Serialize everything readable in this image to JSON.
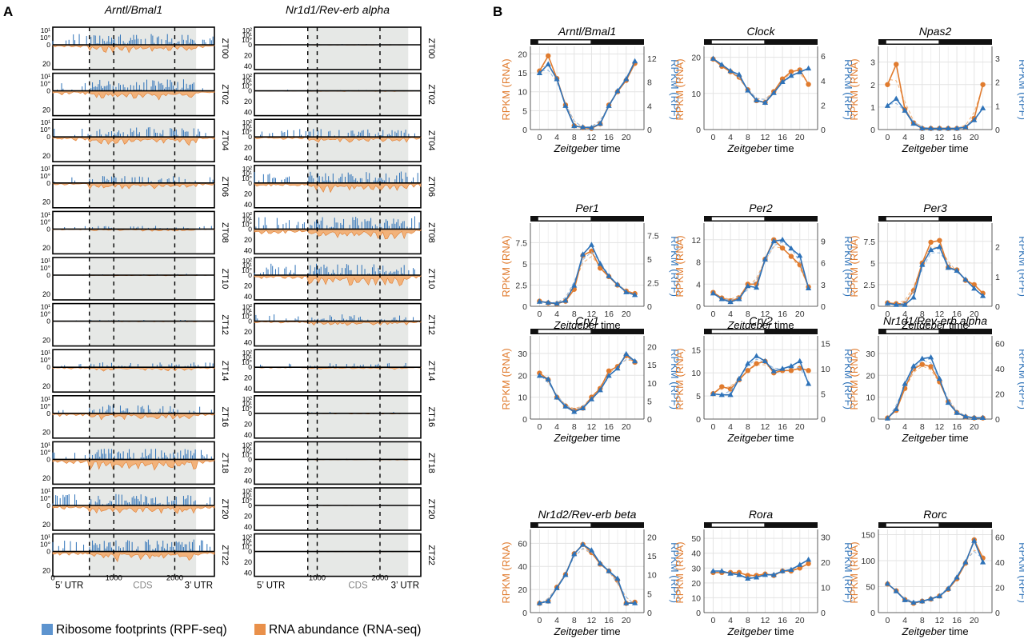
{
  "panel_a": {
    "label": "A",
    "genes": [
      {
        "title": "Arntl/Bmal1",
        "rpf_ticks": [
          "10¹",
          "10°",
          "0"
        ],
        "rna_ticks": [
          "20"
        ],
        "cds_start": 600,
        "cds_end": 2350,
        "xmax": 2650,
        "x_ticks": [
          0,
          1000,
          2000
        ],
        "seed": 7
      },
      {
        "title": "Nr1d1/Rev-erb alpha",
        "rpf_ticks": [
          "10²",
          "10¹",
          "10°",
          "0"
        ],
        "rna_ticks": [
          "20",
          "40"
        ],
        "cds_start": 850,
        "cds_end": 2450,
        "xmax": 2650,
        "x_ticks": [
          1000,
          2000
        ],
        "seed": 19
      }
    ],
    "timepoints": [
      "ZT00",
      "ZT02",
      "ZT04",
      "ZT06",
      "ZT08",
      "ZT10",
      "ZT12",
      "ZT14",
      "ZT16",
      "ZT18",
      "ZT20",
      "ZT22"
    ],
    "activity": {
      "Arntl/Bmal1": {
        "rpf": [
          0.75,
          0.8,
          0.7,
          0.5,
          0.25,
          0.1,
          0.1,
          0.35,
          0.6,
          0.75,
          0.8,
          0.85
        ],
        "rna": [
          0.5,
          0.6,
          0.55,
          0.4,
          0.15,
          0.05,
          0.05,
          0.25,
          0.45,
          0.7,
          0.6,
          0.65
        ]
      },
      "Nr1d1/Rev-erb alpha": {
        "rpf": [
          0.05,
          0.08,
          0.55,
          0.8,
          0.9,
          0.8,
          0.5,
          0.3,
          0.1,
          0.05,
          0.03,
          0.03
        ],
        "rna": [
          0.03,
          0.05,
          0.4,
          0.6,
          0.75,
          0.7,
          0.3,
          0.15,
          0.05,
          0.05,
          0.02,
          0.02
        ]
      }
    },
    "utr5": "5’ UTR",
    "cds": "CDS",
    "utr3": "3’ UTR",
    "legend_rpf": "Ribosome footprints (RPF-seq)",
    "legend_rna": "RNA abundance (RNA-seq)"
  },
  "panel_b": {
    "label": "B",
    "xlabel_italic": "Zeitgeber",
    "xlabel_rest": " time",
    "ylabel_left": "RPKM (RNA)",
    "ylabel_right": "RPKM (RPF)",
    "x_ticks": [
      0,
      4,
      8,
      12,
      16,
      20
    ]
  },
  "colors": {
    "rna": "#e07b2e",
    "rpf": "#2e72b8",
    "rpf_light": "#8fb6e0",
    "rna_light": "#f2b27a",
    "cds_bg": "#e6e8e6",
    "grid": "#e3e3e3"
  },
  "chart_data": [
    {
      "type": "line",
      "title": "Arntl/Bmal1",
      "x": [
        0,
        2,
        4,
        6,
        8,
        10,
        12,
        14,
        16,
        18,
        20,
        22
      ],
      "ylim_left": [
        0,
        22
      ],
      "yticks_left": [
        0,
        5,
        10,
        15,
        20
      ],
      "ylim_right": [
        0,
        14
      ],
      "yticks_right": [
        0,
        4,
        8,
        12
      ],
      "series": [
        {
          "name": "RNA",
          "axis": "left",
          "values": [
            15.5,
            19.5,
            13.5,
            6.5,
            1,
            0.5,
            0.3,
            1.5,
            6.5,
            10,
            13,
            17.5
          ]
        },
        {
          "name": "RPF",
          "axis": "right",
          "values": [
            9.5,
            11,
            8.5,
            4,
            0.6,
            0.4,
            0.3,
            1,
            4,
            6.5,
            8.5,
            11.5
          ]
        }
      ]
    },
    {
      "type": "line",
      "title": "Clock",
      "x": [
        0,
        2,
        4,
        6,
        8,
        10,
        12,
        14,
        16,
        18,
        20,
        22
      ],
      "ylim_left": [
        0,
        23
      ],
      "yticks_left": [
        0,
        10,
        20
      ],
      "ylim_right": [
        0,
        6.8
      ],
      "yticks_right": [
        0,
        2,
        4,
        6
      ],
      "series": [
        {
          "name": "RNA",
          "axis": "left",
          "values": [
            19.5,
            17.5,
            16,
            14.5,
            11,
            8,
            7.5,
            10.5,
            14,
            16,
            16.5,
            12.5
          ]
        },
        {
          "name": "RPF",
          "axis": "right",
          "values": [
            5.8,
            5.3,
            4.8,
            4.5,
            3.2,
            2.4,
            2.2,
            3,
            3.9,
            4.4,
            4.7,
            5.0
          ]
        }
      ]
    },
    {
      "type": "line",
      "title": "Npas2",
      "x": [
        0,
        2,
        4,
        6,
        8,
        10,
        12,
        14,
        16,
        18,
        20,
        22
      ],
      "ylim_left": [
        0,
        3.7
      ],
      "yticks_left": [
        0,
        1,
        2,
        3
      ],
      "ylim_right": [
        0,
        3.5
      ],
      "yticks_right": [
        0,
        1,
        2,
        3
      ],
      "series": [
        {
          "name": "RNA",
          "axis": "left",
          "values": [
            2,
            2.9,
            0.9,
            0.3,
            0.05,
            0.05,
            0.05,
            0.05,
            0.05,
            0.1,
            0.5,
            2
          ]
        },
        {
          "name": "RPF",
          "axis": "right",
          "values": [
            1.0,
            1.3,
            0.8,
            0.25,
            0.05,
            0.05,
            0.05,
            0.05,
            0.05,
            0.1,
            0.4,
            0.9
          ]
        }
      ]
    },
    {
      "type": "line",
      "title": "Per1",
      "x": [
        0,
        2,
        4,
        6,
        8,
        10,
        12,
        14,
        16,
        18,
        20,
        22
      ],
      "ylim_left": [
        0,
        9.8
      ],
      "yticks_left": [
        0,
        2.5,
        5,
        7.5
      ],
      "ylim_right": [
        0,
        8.8
      ],
      "yticks_right": [
        0,
        2.5,
        5,
        7.5
      ],
      "series": [
        {
          "name": "RNA",
          "axis": "left",
          "values": [
            0.6,
            0.4,
            0.3,
            0.6,
            2,
            6,
            6.5,
            4.5,
            3.5,
            2.5,
            1.8,
            1.5
          ]
        },
        {
          "name": "RPF",
          "axis": "right",
          "values": [
            0.5,
            0.4,
            0.3,
            0.6,
            2.2,
            5.5,
            6.5,
            4.5,
            3.2,
            2.3,
            1.5,
            1.2
          ]
        }
      ]
    },
    {
      "type": "line",
      "title": "Per2",
      "x": [
        0,
        2,
        4,
        6,
        8,
        10,
        12,
        14,
        16,
        18,
        20,
        22
      ],
      "ylim_left": [
        0,
        15
      ],
      "yticks_left": [
        0,
        4,
        8,
        12
      ],
      "ylim_right": [
        0,
        11.5
      ],
      "yticks_right": [
        0,
        3,
        6,
        9
      ],
      "series": [
        {
          "name": "RNA",
          "axis": "left",
          "values": [
            2.5,
            1.5,
            1,
            1.5,
            4,
            4,
            8.5,
            12,
            10.5,
            9,
            7.5,
            3.5
          ]
        },
        {
          "name": "RPF",
          "axis": "right",
          "values": [
            1.8,
            1,
            0.6,
            1,
            2.8,
            2.6,
            6.5,
            9,
            9.2,
            8,
            7,
            2.5
          ]
        }
      ]
    },
    {
      "type": "line",
      "title": "Per3",
      "x": [
        0,
        2,
        4,
        6,
        8,
        10,
        12,
        14,
        16,
        18,
        20,
        22
      ],
      "ylim_left": [
        0,
        9.6
      ],
      "yticks_left": [
        0,
        2.5,
        5,
        7.5
      ],
      "ylim_right": [
        0,
        2.8
      ],
      "yticks_right": [
        0,
        1,
        2
      ],
      "series": [
        {
          "name": "RNA",
          "axis": "left",
          "values": [
            0.4,
            0.3,
            0.3,
            1.8,
            5,
            7.4,
            7.6,
            4.5,
            4.2,
            3,
            2.5,
            1.5
          ]
        },
        {
          "name": "RPF",
          "axis": "right",
          "values": [
            0.1,
            0.05,
            0.05,
            0.3,
            1.4,
            1.9,
            2.0,
            1.3,
            1.2,
            0.9,
            0.6,
            0.35
          ]
        }
      ]
    },
    {
      "type": "line",
      "title": "Cry1",
      "x": [
        0,
        2,
        4,
        6,
        8,
        10,
        12,
        14,
        16,
        18,
        20,
        22
      ],
      "ylim_left": [
        0,
        38
      ],
      "yticks_left": [
        0,
        10,
        20,
        30
      ],
      "ylim_right": [
        0,
        23
      ],
      "yticks_right": [
        0,
        5,
        10,
        15,
        20
      ],
      "series": [
        {
          "name": "RNA",
          "axis": "left",
          "values": [
            21,
            18,
            10,
            6,
            4,
            5,
            10,
            14,
            22,
            24,
            29,
            26
          ]
        },
        {
          "name": "RPF",
          "axis": "right",
          "values": [
            12,
            11,
            6,
            3.5,
            2,
            3,
            5.5,
            8,
            12,
            14,
            18,
            16
          ]
        }
      ]
    },
    {
      "type": "line",
      "title": "Cry2",
      "x": [
        0,
        2,
        4,
        6,
        8,
        10,
        12,
        14,
        16,
        18,
        20,
        22
      ],
      "ylim_left": [
        0,
        18
      ],
      "yticks_left": [
        0,
        5,
        10,
        15
      ],
      "ylim_right": [
        0,
        16.5
      ],
      "yticks_right": [
        0,
        5,
        10,
        15
      ],
      "series": [
        {
          "name": "RNA",
          "axis": "left",
          "values": [
            5.5,
            7,
            6.5,
            8.5,
            10.5,
            12,
            12.5,
            10,
            10.5,
            10.5,
            11,
            10.5
          ]
        },
        {
          "name": "RPF",
          "axis": "right",
          "values": [
            5,
            4.8,
            4.8,
            8,
            11,
            12.5,
            11.5,
            9.5,
            10,
            10.5,
            11.5,
            7
          ]
        }
      ]
    },
    {
      "type": "line",
      "title": "Nr1d1/Rev-erb alpha",
      "x": [
        0,
        2,
        4,
        6,
        8,
        10,
        12,
        14,
        16,
        18,
        20,
        22
      ],
      "ylim_left": [
        0,
        38
      ],
      "yticks_left": [
        0,
        10,
        20,
        30
      ],
      "ylim_right": [
        0,
        66
      ],
      "yticks_right": [
        0,
        20,
        40,
        60
      ],
      "series": [
        {
          "name": "RNA",
          "axis": "left",
          "values": [
            0.5,
            4,
            14,
            23,
            25,
            24,
            17,
            8,
            3,
            1,
            0.5,
            0.5
          ]
        },
        {
          "name": "RPF",
          "axis": "right",
          "values": [
            0.5,
            8,
            28,
            42,
            48,
            49,
            32,
            13,
            5,
            2,
            1,
            1
          ]
        }
      ]
    },
    {
      "type": "line",
      "title": "Nr1d2/Rev-erb beta",
      "x": [
        0,
        2,
        4,
        6,
        8,
        10,
        12,
        14,
        16,
        18,
        20,
        22
      ],
      "ylim_left": [
        0,
        72
      ],
      "yticks_left": [
        0,
        20,
        40,
        60
      ],
      "ylim_right": [
        0,
        22
      ],
      "yticks_right": [
        0,
        5,
        10,
        15,
        20
      ],
      "series": [
        {
          "name": "RNA",
          "axis": "left",
          "values": [
            8,
            10,
            22,
            33,
            51,
            59,
            52,
            42,
            36,
            28,
            8,
            9
          ]
        },
        {
          "name": "RPF",
          "axis": "right",
          "values": [
            2.5,
            3,
            6.5,
            10,
            15.5,
            18,
            16.5,
            13,
            11,
            9,
            2.5,
            2.5
          ]
        }
      ]
    },
    {
      "type": "line",
      "title": "Rora",
      "x": [
        0,
        2,
        4,
        6,
        8,
        10,
        12,
        14,
        16,
        18,
        20,
        22
      ],
      "ylim_left": [
        0,
        56
      ],
      "yticks_left": [
        0,
        10,
        20,
        30,
        40,
        50
      ],
      "ylim_right": [
        0,
        33
      ],
      "yticks_right": [
        0,
        10,
        20,
        30
      ],
      "series": [
        {
          "name": "RNA",
          "axis": "left",
          "values": [
            27,
            27,
            27,
            27,
            25,
            25,
            26,
            25,
            28,
            28,
            30,
            33
          ]
        },
        {
          "name": "RPF",
          "axis": "right",
          "values": [
            16.5,
            16.5,
            15.5,
            15,
            13.5,
            14,
            15,
            15,
            16.5,
            17,
            19,
            21
          ]
        }
      ]
    },
    {
      "type": "line",
      "title": "Rorc",
      "x": [
        0,
        2,
        4,
        6,
        8,
        10,
        12,
        14,
        16,
        18,
        20,
        22
      ],
      "ylim_left": [
        0,
        160
      ],
      "yticks_left": [
        0,
        50,
        100,
        150
      ],
      "ylim_right": [
        0,
        66
      ],
      "yticks_right": [
        0,
        20,
        40,
        60
      ],
      "series": [
        {
          "name": "RNA",
          "axis": "left",
          "values": [
            55,
            42,
            25,
            18,
            22,
            26,
            32,
            45,
            65,
            95,
            140,
            105
          ]
        },
        {
          "name": "RPF",
          "axis": "right",
          "values": [
            23,
            17,
            10,
            8,
            9,
            11,
            13,
            19,
            28,
            40,
            57,
            40
          ]
        }
      ]
    }
  ]
}
